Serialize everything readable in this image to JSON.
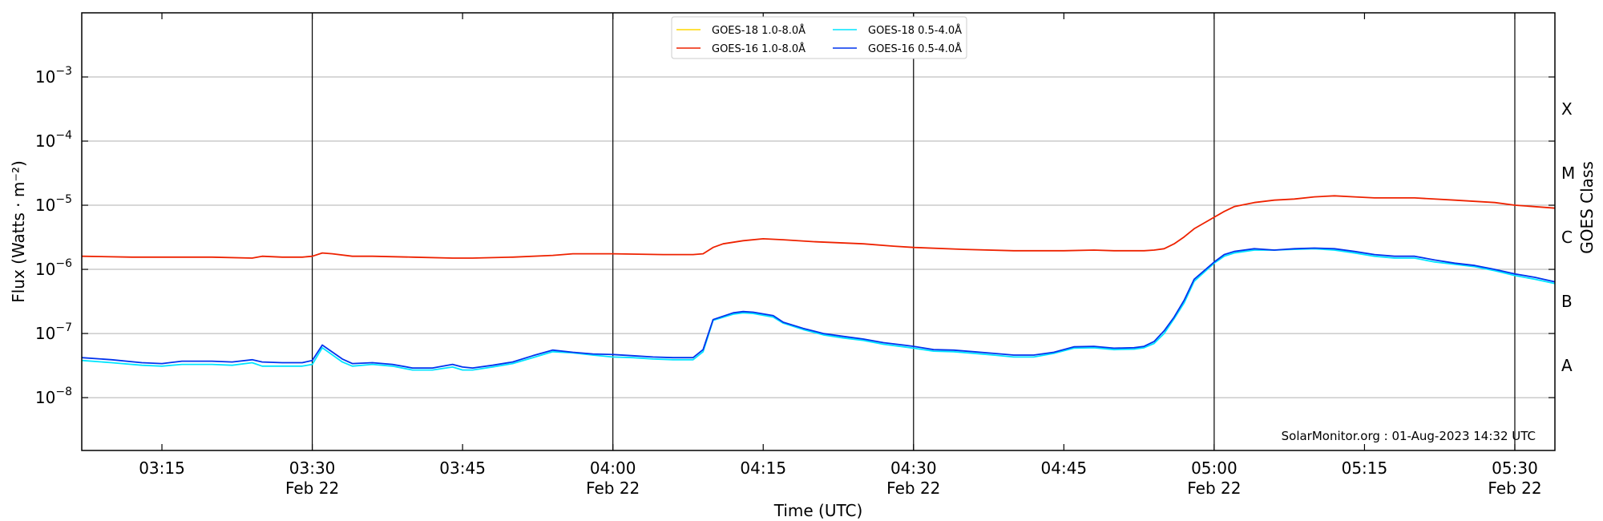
{
  "chart_data": {
    "type": "line",
    "xlabel": "Time (UTC)",
    "ylabel": "Flux (Watts · m⁻²)",
    "y2label": "GOES Class",
    "yscale": "log",
    "ylim": [
      1.5e-09,
      0.01
    ],
    "xlim": [
      "03:07",
      "05:34"
    ],
    "grid": "horizontal lines at each decade",
    "legend_position": "top-center",
    "x_ticks": [
      {
        "value": "03:15",
        "label": "03:15"
      },
      {
        "value": "03:30",
        "label": "03:30",
        "sublabel": "Feb 22"
      },
      {
        "value": "03:45",
        "label": "03:45"
      },
      {
        "value": "04:00",
        "label": "04:00",
        "sublabel": "Feb 22"
      },
      {
        "value": "04:15",
        "label": "04:15"
      },
      {
        "value": "04:30",
        "label": "04:30",
        "sublabel": "Feb 22"
      },
      {
        "value": "04:45",
        "label": "04:45"
      },
      {
        "value": "05:00",
        "label": "05:00",
        "sublabel": "Feb 22"
      },
      {
        "value": "05:15",
        "label": "05:15"
      },
      {
        "value": "05:30",
        "label": "05:30",
        "sublabel": "Feb 22"
      }
    ],
    "vertical_lines": [
      "03:30",
      "04:00",
      "04:30",
      "05:00",
      "05:30"
    ],
    "y_ticks": [
      {
        "value": 1e-08,
        "base": "10",
        "exp": "−8"
      },
      {
        "value": 1e-07,
        "base": "10",
        "exp": "−7"
      },
      {
        "value": 1e-06,
        "base": "10",
        "exp": "−6"
      },
      {
        "value": 1e-05,
        "base": "10",
        "exp": "−5"
      },
      {
        "value": 0.0001,
        "base": "10",
        "exp": "−4"
      },
      {
        "value": 0.001,
        "base": "10",
        "exp": "−3"
      }
    ],
    "goes_classes": [
      {
        "label": "A",
        "value": 3.16e-08
      },
      {
        "label": "B",
        "value": 3.16e-07
      },
      {
        "label": "C",
        "value": 3.16e-06
      },
      {
        "label": "M",
        "value": 3.16e-05
      },
      {
        "label": "X",
        "value": 0.000316
      }
    ],
    "series": [
      {
        "name": "GOES-18 1.0-8.0Å",
        "color": "#ffd700",
        "x": [],
        "values": []
      },
      {
        "name": "GOES-18 0.5-4.0Å",
        "color": "#00e5ff",
        "x": [
          "03:07",
          "03:10",
          "03:13",
          "03:15",
          "03:17",
          "03:20",
          "03:22",
          "03:24",
          "03:25",
          "03:27",
          "03:29",
          "03:30",
          "03:31",
          "03:33",
          "03:34",
          "03:36",
          "03:38",
          "03:40",
          "03:42",
          "03:44",
          "03:45",
          "03:46",
          "03:48",
          "03:50",
          "03:52",
          "03:54",
          "03:56",
          "03:58",
          "04:00",
          "04:02",
          "04:04",
          "04:06",
          "04:08",
          "04:09",
          "04:10",
          "04:12",
          "04:13",
          "04:14",
          "04:16",
          "04:17",
          "04:19",
          "04:21",
          "04:23",
          "04:25",
          "04:27",
          "04:29",
          "04:30",
          "04:32",
          "04:34",
          "04:36",
          "04:38",
          "04:40",
          "04:42",
          "04:44",
          "04:46",
          "04:48",
          "04:50",
          "04:52",
          "04:53",
          "04:54",
          "04:55",
          "04:56",
          "04:57",
          "04:58",
          "05:00",
          "05:01",
          "05:02",
          "05:04",
          "05:06",
          "05:08",
          "05:10",
          "05:12",
          "05:14",
          "05:16",
          "05:18",
          "05:20",
          "05:22",
          "05:24",
          "05:26",
          "05:28",
          "05:30",
          "05:32",
          "05:34"
        ],
        "values": [
          3.8e-08,
          3.5e-08,
          3.2e-08,
          3.1e-08,
          3.3e-08,
          3.3e-08,
          3.2e-08,
          3.5e-08,
          3.1e-08,
          3.1e-08,
          3.1e-08,
          3.3e-08,
          6e-08,
          3.6e-08,
          3.1e-08,
          3.3e-08,
          3.1e-08,
          2.7e-08,
          2.7e-08,
          3e-08,
          2.7e-08,
          2.7e-08,
          3e-08,
          3.4e-08,
          4.2e-08,
          5.2e-08,
          5e-08,
          4.6e-08,
          4.3e-08,
          4.2e-08,
          4e-08,
          3.9e-08,
          3.9e-08,
          5.2e-08,
          1.6e-07,
          2e-07,
          2.1e-07,
          2.05e-07,
          1.8e-07,
          1.45e-07,
          1.15e-07,
          9.5e-08,
          8.5e-08,
          7.8e-08,
          6.8e-08,
          6.2e-08,
          5.9e-08,
          5.3e-08,
          5.2e-08,
          4.9e-08,
          4.6e-08,
          4.3e-08,
          4.3e-08,
          4.9e-08,
          5.9e-08,
          6e-08,
          5.6e-08,
          5.7e-08,
          6e-08,
          7e-08,
          1e-07,
          1.7e-07,
          3e-07,
          6.5e-07,
          1.25e-06,
          1.6e-06,
          1.8e-06,
          2e-06,
          2e-06,
          2.05e-06,
          2.1e-06,
          2e-06,
          1.8e-06,
          1.6e-06,
          1.5e-06,
          1.5e-06,
          1.3e-06,
          1.2e-06,
          1.1e-06,
          9.5e-07,
          8e-07,
          7e-07,
          6e-07
        ]
      },
      {
        "name": "GOES-16 1.0-8.0Å",
        "color": "#ee2200",
        "x": [
          "03:07",
          "03:12",
          "03:15",
          "03:20",
          "03:24",
          "03:25",
          "03:27",
          "03:29",
          "03:30",
          "03:31",
          "03:32",
          "03:34",
          "03:36",
          "03:40",
          "03:44",
          "03:46",
          "03:50",
          "03:54",
          "03:56",
          "04:00",
          "04:05",
          "04:08",
          "04:09",
          "04:10",
          "04:11",
          "04:13",
          "04:15",
          "04:17",
          "04:20",
          "04:25",
          "04:28",
          "04:30",
          "04:35",
          "04:40",
          "04:45",
          "04:48",
          "04:50",
          "04:53",
          "04:54",
          "04:55",
          "04:56",
          "04:57",
          "04:58",
          "05:00",
          "05:01",
          "05:02",
          "05:04",
          "05:06",
          "05:08",
          "05:10",
          "05:12",
          "05:14",
          "05:16",
          "05:18",
          "05:20",
          "05:24",
          "05:26",
          "05:28",
          "05:30",
          "05:32",
          "05:34"
        ],
        "values": [
          1.6e-06,
          1.55e-06,
          1.55e-06,
          1.55e-06,
          1.5e-06,
          1.6e-06,
          1.55e-06,
          1.55e-06,
          1.6e-06,
          1.8e-06,
          1.75e-06,
          1.6e-06,
          1.6e-06,
          1.55e-06,
          1.5e-06,
          1.5e-06,
          1.55e-06,
          1.65e-06,
          1.75e-06,
          1.75e-06,
          1.7e-06,
          1.7e-06,
          1.75e-06,
          2.2e-06,
          2.5e-06,
          2.8e-06,
          3e-06,
          2.9e-06,
          2.7e-06,
          2.5e-06,
          2.3e-06,
          2.2e-06,
          2.05e-06,
          1.95e-06,
          1.95e-06,
          2e-06,
          1.95e-06,
          1.95e-06,
          2e-06,
          2.1e-06,
          2.5e-06,
          3.2e-06,
          4.3e-06,
          6.5e-06,
          8e-06,
          9.5e-06,
          1.1e-05,
          1.2e-05,
          1.25e-05,
          1.35e-05,
          1.4e-05,
          1.35e-05,
          1.3e-05,
          1.3e-05,
          1.3e-05,
          1.2e-05,
          1.15e-05,
          1.1e-05,
          1e-05,
          9.5e-06,
          9e-06
        ]
      },
      {
        "name": "GOES-16 0.5-4.0Å",
        "color": "#0033ee",
        "x": [
          "03:07",
          "03:10",
          "03:13",
          "03:15",
          "03:17",
          "03:20",
          "03:22",
          "03:24",
          "03:25",
          "03:27",
          "03:29",
          "03:30",
          "03:31",
          "03:33",
          "03:34",
          "03:36",
          "03:38",
          "03:40",
          "03:42",
          "03:44",
          "03:45",
          "03:46",
          "03:48",
          "03:50",
          "03:52",
          "03:54",
          "03:56",
          "03:58",
          "04:00",
          "04:02",
          "04:04",
          "04:06",
          "04:08",
          "04:09",
          "04:10",
          "04:12",
          "04:13",
          "04:14",
          "04:16",
          "04:17",
          "04:19",
          "04:21",
          "04:23",
          "04:25",
          "04:27",
          "04:29",
          "04:30",
          "04:32",
          "04:34",
          "04:36",
          "04:38",
          "04:40",
          "04:42",
          "04:44",
          "04:46",
          "04:48",
          "04:50",
          "04:52",
          "04:53",
          "04:54",
          "04:55",
          "04:56",
          "04:57",
          "04:58",
          "05:00",
          "05:01",
          "05:02",
          "05:04",
          "05:06",
          "05:08",
          "05:10",
          "05:12",
          "05:14",
          "05:16",
          "05:18",
          "05:20",
          "05:22",
          "05:24",
          "05:26",
          "05:28",
          "05:30",
          "05:32",
          "05:34"
        ],
        "values": [
          4.2e-08,
          3.9e-08,
          3.5e-08,
          3.4e-08,
          3.7e-08,
          3.7e-08,
          3.6e-08,
          3.9e-08,
          3.6e-08,
          3.5e-08,
          3.5e-08,
          3.8e-08,
          6.6e-08,
          4e-08,
          3.4e-08,
          3.5e-08,
          3.3e-08,
          2.9e-08,
          2.9e-08,
          3.3e-08,
          3e-08,
          2.9e-08,
          3.2e-08,
          3.6e-08,
          4.5e-08,
          5.5e-08,
          5.1e-08,
          4.8e-08,
          4.7e-08,
          4.5e-08,
          4.3e-08,
          4.2e-08,
          4.2e-08,
          5.6e-08,
          1.65e-07,
          2.1e-07,
          2.2e-07,
          2.15e-07,
          1.9e-07,
          1.5e-07,
          1.2e-07,
          1e-07,
          9e-08,
          8.2e-08,
          7.2e-08,
          6.6e-08,
          6.3e-08,
          5.6e-08,
          5.5e-08,
          5.2e-08,
          4.9e-08,
          4.6e-08,
          4.6e-08,
          5.1e-08,
          6.2e-08,
          6.3e-08,
          5.9e-08,
          6e-08,
          6.3e-08,
          7.5e-08,
          1.1e-07,
          1.8e-07,
          3.3e-07,
          7e-07,
          1.3e-06,
          1.7e-06,
          1.9e-06,
          2.1e-06,
          2e-06,
          2.1e-06,
          2.15e-06,
          2.1e-06,
          1.9e-06,
          1.7e-06,
          1.6e-06,
          1.6e-06,
          1.4e-06,
          1.25e-06,
          1.15e-06,
          1e-06,
          8.5e-07,
          7.5e-07,
          6.4e-07
        ]
      }
    ]
  },
  "watermark": "SolarMonitor.org : 01-Aug-2023 14:32 UTC"
}
